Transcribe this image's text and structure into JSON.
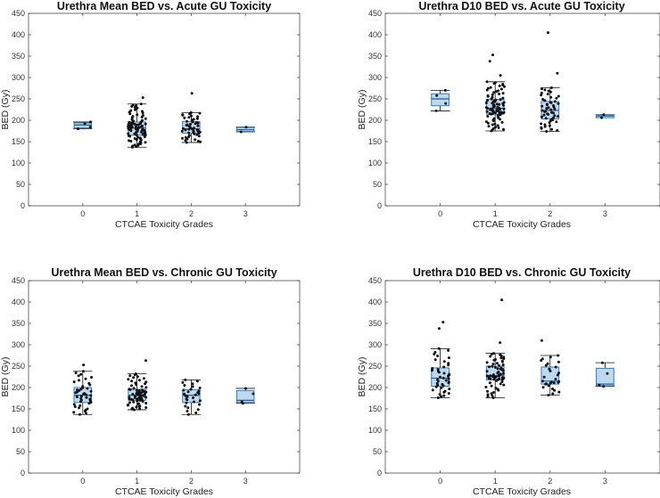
{
  "chart_data": [
    {
      "type": "box",
      "title": "Urethra Mean BED vs. Acute GU Toxicity",
      "xlabel": "CTCAE Toxicity Grades",
      "ylabel": "BED (Gy)",
      "categories": [
        "0",
        "1",
        "2",
        "3"
      ],
      "ylim": [
        0,
        450
      ],
      "yticks": [
        0,
        50,
        100,
        150,
        200,
        250,
        300,
        350,
        400,
        450
      ],
      "color": "#2f7fc1",
      "fill": "#bcd9ef",
      "boxes": [
        {
          "grade": "0",
          "min": 180,
          "q1": 182,
          "median": 189,
          "q3": 194,
          "max": 196,
          "n": 4,
          "outliers": []
        },
        {
          "grade": "1",
          "min": 137,
          "q1": 165,
          "median": 182,
          "q3": 196,
          "max": 238,
          "n": 90,
          "outliers": [
            253
          ]
        },
        {
          "grade": "2",
          "min": 148,
          "q1": 170,
          "median": 180,
          "q3": 197,
          "max": 218,
          "n": 55,
          "outliers": [
            263
          ]
        },
        {
          "grade": "3",
          "min": 173,
          "q1": 174,
          "median": 178,
          "q3": 183,
          "max": 184,
          "n": 2,
          "outliers": []
        }
      ]
    },
    {
      "type": "box",
      "title": "Urethra D10 BED vs. Acute GU Toxicity",
      "xlabel": "CTCAE Toxicity Grades",
      "ylabel": "BED (Gy)",
      "categories": [
        "0",
        "1",
        "2",
        "3"
      ],
      "ylim": [
        0,
        450
      ],
      "yticks": [
        0,
        50,
        100,
        150,
        200,
        250,
        300,
        350,
        400,
        450
      ],
      "color": "#2f7fc1",
      "fill": "#bcd9ef",
      "boxes": [
        {
          "grade": "0",
          "min": 222,
          "q1": 234,
          "median": 250,
          "q3": 262,
          "max": 270,
          "n": 4,
          "outliers": []
        },
        {
          "grade": "1",
          "min": 175,
          "q1": 214,
          "median": 228,
          "q3": 249,
          "max": 290,
          "n": 90,
          "outliers": [
            305,
            338,
            353
          ]
        },
        {
          "grade": "2",
          "min": 174,
          "q1": 203,
          "median": 223,
          "q3": 244,
          "max": 276,
          "n": 55,
          "outliers": [
            310,
            405
          ]
        },
        {
          "grade": "3",
          "min": 206,
          "q1": 206,
          "median": 210,
          "q3": 212,
          "max": 213,
          "n": 2,
          "outliers": []
        }
      ]
    },
    {
      "type": "box",
      "title": "Urethra Mean BED vs. Chronic GU Toxicity",
      "xlabel": "CTCAE Toxicity Grades",
      "ylabel": "BED (Gy)",
      "categories": [
        "0",
        "1",
        "2",
        "3"
      ],
      "ylim": [
        0,
        450
      ],
      "yticks": [
        0,
        50,
        100,
        150,
        200,
        250,
        300,
        350,
        400,
        450
      ],
      "color": "#2f7fc1",
      "fill": "#bcd9ef",
      "boxes": [
        {
          "grade": "0",
          "min": 137,
          "q1": 165,
          "median": 182,
          "q3": 200,
          "max": 238,
          "n": 45,
          "outliers": [
            253
          ]
        },
        {
          "grade": "1",
          "min": 148,
          "q1": 170,
          "median": 182,
          "q3": 196,
          "max": 232,
          "n": 70,
          "outliers": [
            263
          ]
        },
        {
          "grade": "2",
          "min": 137,
          "q1": 165,
          "median": 182,
          "q3": 195,
          "max": 218,
          "n": 30,
          "outliers": []
        },
        {
          "grade": "3",
          "min": 163,
          "q1": 165,
          "median": 170,
          "q3": 193,
          "max": 198,
          "n": 4,
          "outliers": []
        }
      ]
    },
    {
      "type": "box",
      "title": "Urethra D10 BED vs. Chronic GU Toxicity",
      "xlabel": "CTCAE Toxicity Grades",
      "ylabel": "BED (Gy)",
      "categories": [
        "0",
        "1",
        "2",
        "3"
      ],
      "ylim": [
        0,
        450
      ],
      "yticks": [
        0,
        50,
        100,
        150,
        200,
        250,
        300,
        350,
        400,
        450
      ],
      "color": "#2f7fc1",
      "fill": "#bcd9ef",
      "boxes": [
        {
          "grade": "0",
          "min": 176,
          "q1": 203,
          "median": 222,
          "q3": 246,
          "max": 291,
          "n": 45,
          "outliers": [
            338,
            353
          ]
        },
        {
          "grade": "1",
          "min": 176,
          "q1": 218,
          "median": 228,
          "q3": 250,
          "max": 280,
          "n": 70,
          "outliers": [
            305,
            405
          ]
        },
        {
          "grade": "2",
          "min": 182,
          "q1": 208,
          "median": 215,
          "q3": 248,
          "max": 275,
          "n": 30,
          "outliers": [
            310
          ]
        },
        {
          "grade": "3",
          "min": 203,
          "q1": 204,
          "median": 208,
          "q3": 245,
          "max": 258,
          "n": 4,
          "outliers": []
        }
      ]
    }
  ]
}
